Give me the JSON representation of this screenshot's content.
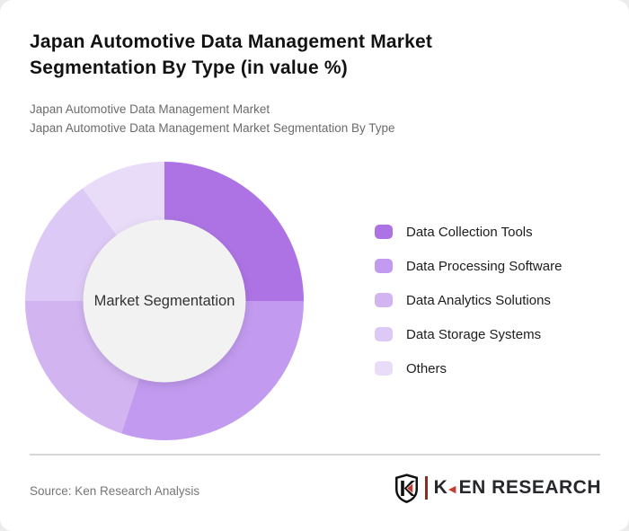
{
  "header": {
    "title": "Japan Automotive Data Management Market Segmentation By Type (in value %)",
    "subtitle_line1": "Japan Automotive Data Management Market",
    "subtitle_line2": "Japan Automotive Data Management Market Segmentation By Type"
  },
  "chart_data": {
    "type": "pie",
    "subtype": "donut",
    "title": "Japan Automotive Data Management Market Segmentation By Type (in value %)",
    "center_label": "Market Segmentation",
    "categories": [
      "Data Collection Tools",
      "Data Processing Software",
      "Data Analytics Solutions",
      "Data Storage Systems",
      "Others"
    ],
    "values": [
      25,
      30,
      20,
      15,
      10
    ],
    "unit": "value %",
    "colors": [
      "#ad73e4",
      "#c29aef",
      "#d2b4f1",
      "#ddc9f5",
      "#e9dcf9"
    ],
    "legend_position": "right",
    "start_angle_deg": 0,
    "direction": "clockwise",
    "data_labels_shown": false
  },
  "footer": {
    "source": "Source: Ken Research Analysis",
    "logo": {
      "emblem_letter": "K",
      "brand_k": "K",
      "triangle_glyph": "◄",
      "brand_rest": "EN RESEARCH"
    }
  }
}
